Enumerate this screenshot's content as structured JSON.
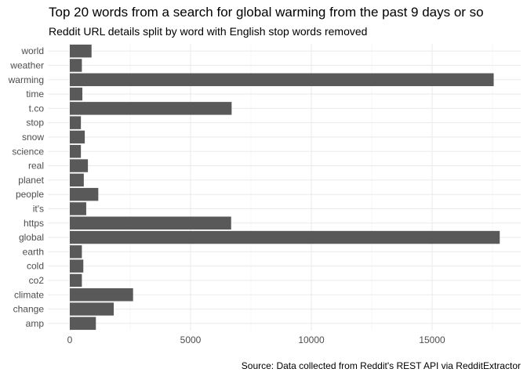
{
  "chart_data": {
    "type": "bar",
    "orientation": "horizontal",
    "title": "Top 20 words from a search for global warming from the past 9 days or so",
    "subtitle": "Reddit URL details split by word with English stop words removed",
    "caption": "Source: Data collected from Reddit's REST API via RedditExtractor",
    "xlabel": "",
    "ylabel": "",
    "xlim": [
      0,
      18000
    ],
    "x_ticks": [
      0,
      5000,
      10000,
      15000
    ],
    "categories": [
      "world",
      "weather",
      "warming",
      "time",
      "t.co",
      "stop",
      "snow",
      "science",
      "real",
      "planet",
      "people",
      "it's",
      "https",
      "global",
      "earth",
      "cold",
      "co2",
      "climate",
      "change",
      "amp"
    ],
    "values": [
      900,
      500,
      17550,
      520,
      6700,
      460,
      620,
      460,
      750,
      580,
      1180,
      680,
      6680,
      17800,
      500,
      560,
      500,
      2620,
      1820,
      1080
    ],
    "bar_color": "#595959",
    "grid": true,
    "legend": "none"
  }
}
